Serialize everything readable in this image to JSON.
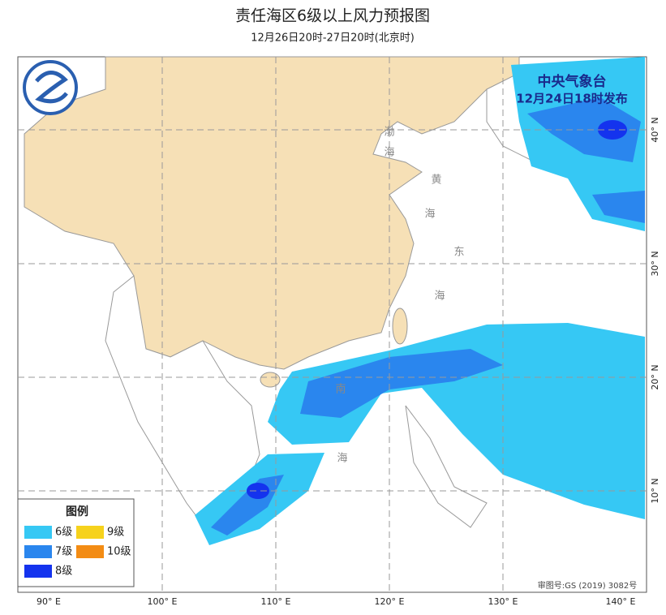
{
  "header": {
    "title": "责任海区6级以上风力预报图",
    "subtitle": "12月26日20时-27日20时(北京时)"
  },
  "issuer": {
    "agency": "中央气象台",
    "issued": "12月24日18时发布"
  },
  "sea_labels": [
    "渤",
    "海",
    "黄",
    "海",
    "东",
    "海",
    "南",
    "海"
  ],
  "axes": {
    "lon_labels": [
      "90° E",
      "100° E",
      "110° E",
      "120° E",
      "130° E",
      "140° E"
    ],
    "lat_labels": [
      "40° N",
      "30° N",
      "20° N",
      "10° N"
    ]
  },
  "legend": {
    "title": "图例",
    "items": [
      {
        "label": "6级",
        "color": "#36c8f4"
      },
      {
        "label": "7级",
        "color": "#2a86ee"
      },
      {
        "label": "8级",
        "color": "#1433ee"
      },
      {
        "label": "9级",
        "color": "#f6d21c"
      },
      {
        "label": "10级",
        "color": "#f38c14"
      }
    ]
  },
  "footer": {
    "approval": "审图号:GS (2019) 3082号"
  }
}
